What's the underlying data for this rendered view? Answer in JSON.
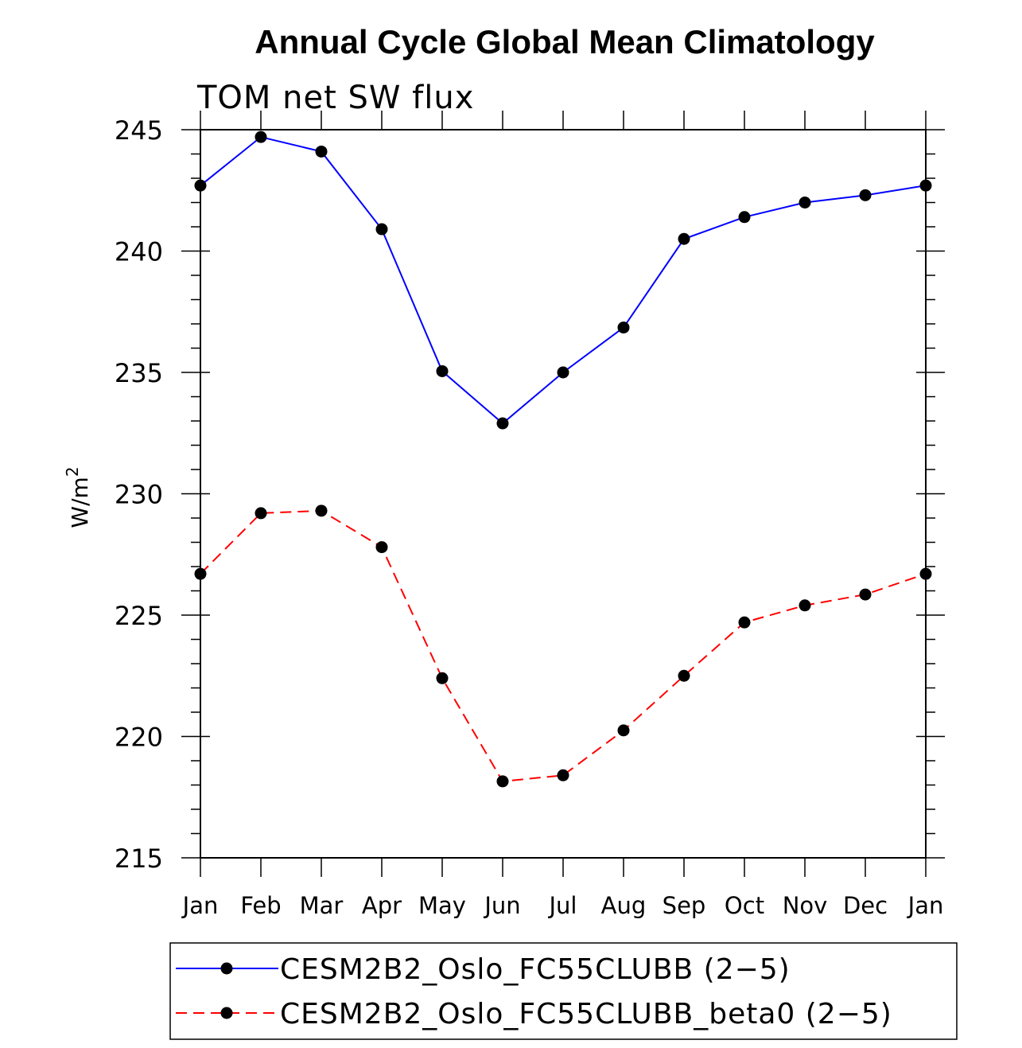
{
  "chart_data": {
    "type": "line",
    "title": "Annual Cycle Global Mean Climatology",
    "subtitle": "TOM net SW flux",
    "ylabel_base": "W/m",
    "ylabel_superscript": "2",
    "ylim": [
      215,
      245
    ],
    "yticks": [
      "215",
      "220",
      "225",
      "230",
      "235",
      "240",
      "245"
    ],
    "categories": [
      "Jan",
      "Feb",
      "Mar",
      "Apr",
      "May",
      "Jun",
      "Jul",
      "Aug",
      "Sep",
      "Oct",
      "Nov",
      "Dec",
      "Jan"
    ],
    "series": [
      {
        "name": "CESM2B2_Oslo_FC55CLUBB (2−5)",
        "color": "#0000ff",
        "dash": "solid",
        "marker": "filled-circle",
        "values": [
          242.7,
          244.7,
          244.1,
          240.9,
          235.05,
          232.9,
          235.0,
          236.85,
          240.5,
          241.4,
          242.0,
          242.3,
          242.7
        ]
      },
      {
        "name": "CESM2B2_Oslo_FC55CLUBB_beta0 (2−5)",
        "color": "#ff0000",
        "dash": "dashed",
        "marker": "filled-circle",
        "values": [
          226.7,
          229.2,
          229.3,
          227.8,
          222.4,
          218.15,
          218.4,
          220.25,
          222.5,
          224.7,
          225.4,
          225.85,
          226.7
        ]
      }
    ]
  }
}
